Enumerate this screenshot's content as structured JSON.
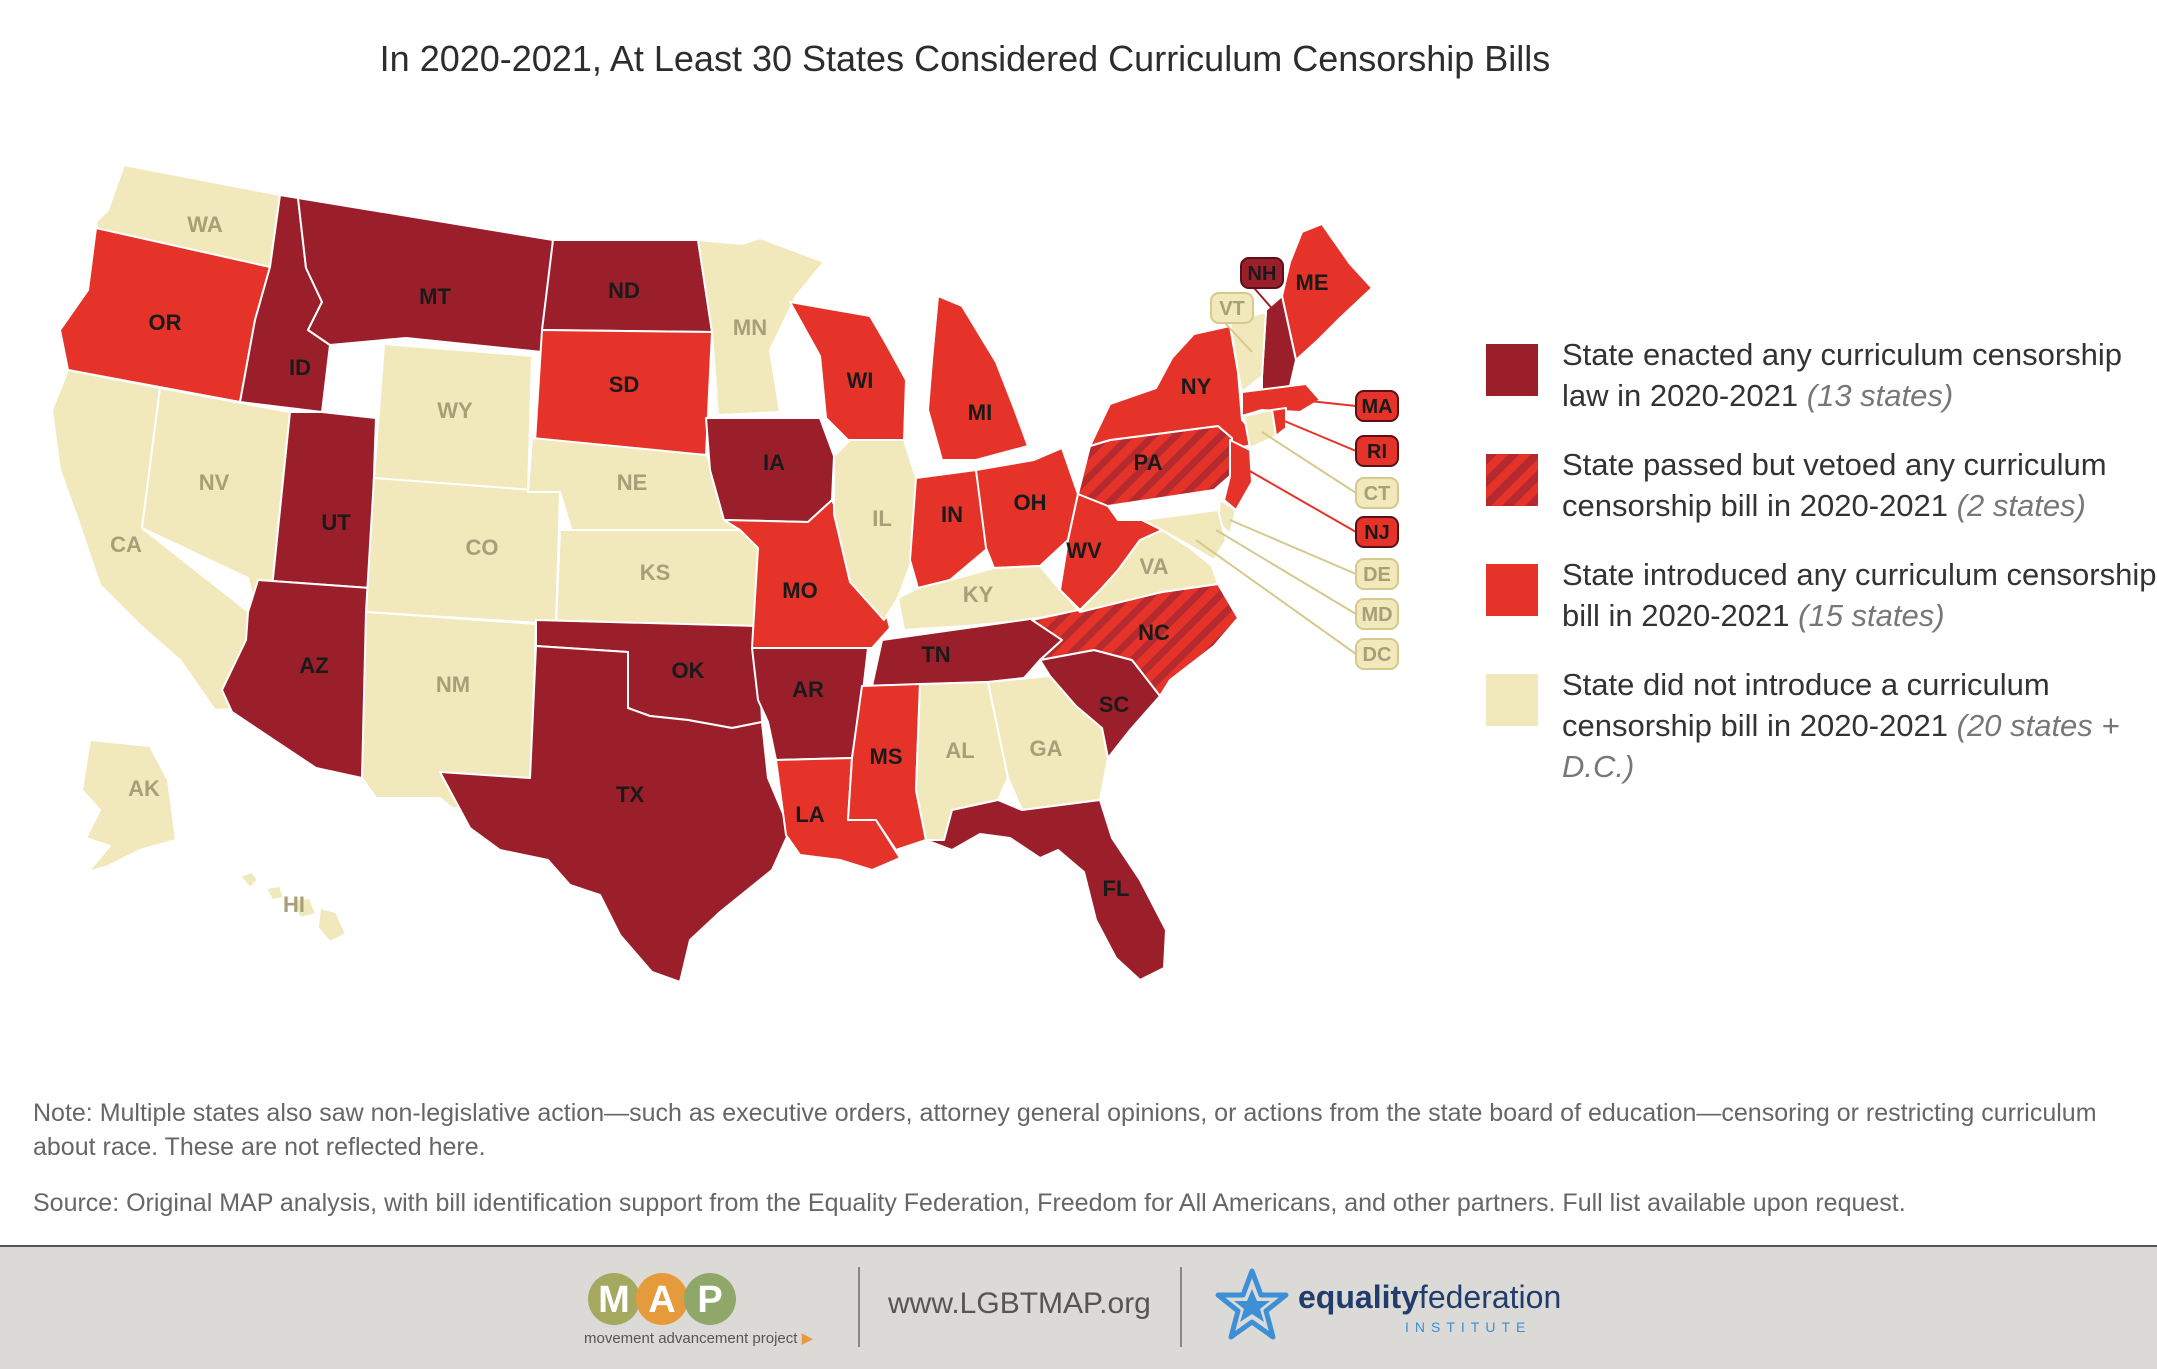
{
  "title": "In 2020-2021, At Least 30 States Considered Curriculum Censorship Bills",
  "colors": {
    "enacted": "#9b1f2a",
    "vetoed": "#b52a2e",
    "introduced": "#e53329",
    "none": "#f1e8bb",
    "none_label": "#a89e78",
    "dark_label": "#1a1a1a"
  },
  "legend": [
    {
      "category": "enacted",
      "text": "State enacted any curriculum censorship law in 2020-2021",
      "count": "(13 states)"
    },
    {
      "category": "vetoed",
      "text": "State passed but vetoed any curriculum censorship bill in 2020-2021",
      "count": "(2 states)"
    },
    {
      "category": "introduced",
      "text": "State introduced any curriculum censorship bill in 2020-2021",
      "count": "(15 states)"
    },
    {
      "category": "none",
      "text": "State did not introduce a curriculum censorship bill in 2020-2021",
      "count": "(20 states + D.C.)"
    }
  ],
  "states": [
    {
      "abbr": "WA",
      "category": "none"
    },
    {
      "abbr": "OR",
      "category": "introduced"
    },
    {
      "abbr": "CA",
      "category": "none"
    },
    {
      "abbr": "NV",
      "category": "none"
    },
    {
      "abbr": "ID",
      "category": "enacted"
    },
    {
      "abbr": "MT",
      "category": "enacted"
    },
    {
      "abbr": "WY",
      "category": "none"
    },
    {
      "abbr": "UT",
      "category": "enacted"
    },
    {
      "abbr": "AZ",
      "category": "enacted"
    },
    {
      "abbr": "CO",
      "category": "none"
    },
    {
      "abbr": "NM",
      "category": "none"
    },
    {
      "abbr": "ND",
      "category": "enacted"
    },
    {
      "abbr": "SD",
      "category": "introduced"
    },
    {
      "abbr": "NE",
      "category": "none"
    },
    {
      "abbr": "KS",
      "category": "none"
    },
    {
      "abbr": "OK",
      "category": "enacted"
    },
    {
      "abbr": "TX",
      "category": "enacted"
    },
    {
      "abbr": "MN",
      "category": "none"
    },
    {
      "abbr": "IA",
      "category": "enacted"
    },
    {
      "abbr": "MO",
      "category": "introduced"
    },
    {
      "abbr": "AR",
      "category": "enacted"
    },
    {
      "abbr": "LA",
      "category": "introduced"
    },
    {
      "abbr": "WI",
      "category": "introduced"
    },
    {
      "abbr": "IL",
      "category": "none"
    },
    {
      "abbr": "MI",
      "category": "introduced"
    },
    {
      "abbr": "IN",
      "category": "introduced"
    },
    {
      "abbr": "OH",
      "category": "introduced"
    },
    {
      "abbr": "KY",
      "category": "none"
    },
    {
      "abbr": "TN",
      "category": "enacted"
    },
    {
      "abbr": "MS",
      "category": "introduced"
    },
    {
      "abbr": "AL",
      "category": "none"
    },
    {
      "abbr": "GA",
      "category": "none"
    },
    {
      "abbr": "FL",
      "category": "enacted"
    },
    {
      "abbr": "SC",
      "category": "enacted"
    },
    {
      "abbr": "NC",
      "category": "vetoed"
    },
    {
      "abbr": "VA",
      "category": "none"
    },
    {
      "abbr": "WV",
      "category": "introduced"
    },
    {
      "abbr": "PA",
      "category": "vetoed"
    },
    {
      "abbr": "NY",
      "category": "introduced"
    },
    {
      "abbr": "ME",
      "category": "introduced"
    },
    {
      "abbr": "NH",
      "category": "enacted"
    },
    {
      "abbr": "VT",
      "category": "none"
    },
    {
      "abbr": "MA",
      "category": "introduced"
    },
    {
      "abbr": "RI",
      "category": "introduced"
    },
    {
      "abbr": "CT",
      "category": "none"
    },
    {
      "abbr": "NJ",
      "category": "introduced"
    },
    {
      "abbr": "DE",
      "category": "none"
    },
    {
      "abbr": "MD",
      "category": "none"
    },
    {
      "abbr": "DC",
      "category": "none"
    },
    {
      "abbr": "AK",
      "category": "none"
    },
    {
      "abbr": "HI",
      "category": "none"
    }
  ],
  "note": "Note: Multiple states also saw non-legislative action—such as executive orders, attorney general opinions, or actions from the state board of education—censoring or restricting curriculum about race. These are not reflected here.",
  "source": "Source: Original MAP analysis, with bill identification support from the Equality Federation, Freedom for All Americans, and other partners. Full list available upon request.",
  "footer": {
    "map_logo": "MAP",
    "map_subtitle": "movement advancement project",
    "url": "www.LGBTMAP.org",
    "ef_name_bold": "equality",
    "ef_name_rest": "federation",
    "ef_subtitle": "INSTITUTE"
  }
}
